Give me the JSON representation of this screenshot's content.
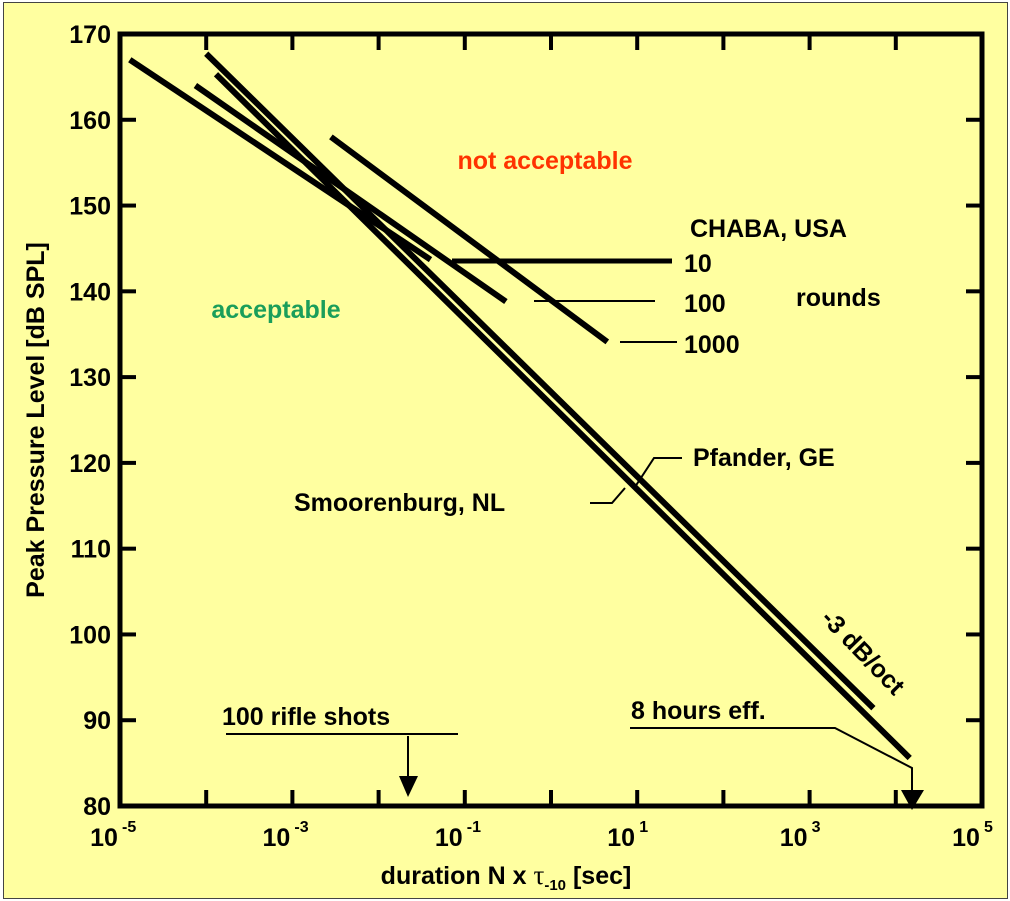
{
  "chart_data": {
    "type": "line",
    "x_scale": "log",
    "xlim": [
      1e-05,
      100000.0
    ],
    "ylim": [
      80,
      170
    ],
    "grid": false,
    "ylabel": "Peak Pressure Level [dB SPL]",
    "xlabel": {
      "main": "duration N x ",
      "tau": "τ",
      "sub": "-10",
      "tail": " [sec]"
    },
    "x_ticks": [
      {
        "value": 1e-05,
        "base": "10",
        "exp": "-5"
      },
      {
        "value": 0.001,
        "base": "10",
        "exp": "-3"
      },
      {
        "value": 0.1,
        "base": "10",
        "exp": "-1"
      },
      {
        "value": 10.0,
        "base": "10",
        "exp": "1"
      },
      {
        "value": 1000.0,
        "base": "10",
        "exp": "3"
      },
      {
        "value": 100000.0,
        "base": "10",
        "exp": "5"
      }
    ],
    "y_ticks": [
      80,
      90,
      100,
      110,
      120,
      130,
      140,
      150,
      160,
      170
    ],
    "series": [
      {
        "points": [
          [
            1.3e-05,
            167
          ],
          [
            0.04,
            143.7
          ]
        ]
      },
      {
        "points": [
          [
            7.5e-05,
            164
          ],
          [
            0.3,
            138.8
          ]
        ]
      },
      {
        "points": [
          [
            0.0028,
            158
          ],
          [
            4.5,
            134.1
          ]
        ]
      },
      {
        "points": [
          [
            0.0001,
            167.7
          ],
          [
            5500,
            91.4
          ]
        ]
      },
      {
        "points": [
          [
            0.00013,
            165.3
          ],
          [
            14500,
            85.6
          ]
        ]
      }
    ],
    "region_labels": {
      "not_acceptable": "not acceptable",
      "acceptable": "acceptable"
    },
    "annotations": {
      "chaba": "CHABA, USA",
      "r10": "10",
      "r100": "100",
      "r1000": "1000",
      "rounds": "rounds",
      "pfander": "Pfander, GE",
      "smoorenburg": "Smoorenburg, NL",
      "slope": "-3 dB/oct",
      "rifle": "100 rifle shots",
      "eight_hours": "8 hours eff."
    },
    "colors": {
      "background": "#ffffa0",
      "not_acceptable": "#ff3300",
      "acceptable": "#1a9e5a",
      "line": "#000000"
    }
  }
}
